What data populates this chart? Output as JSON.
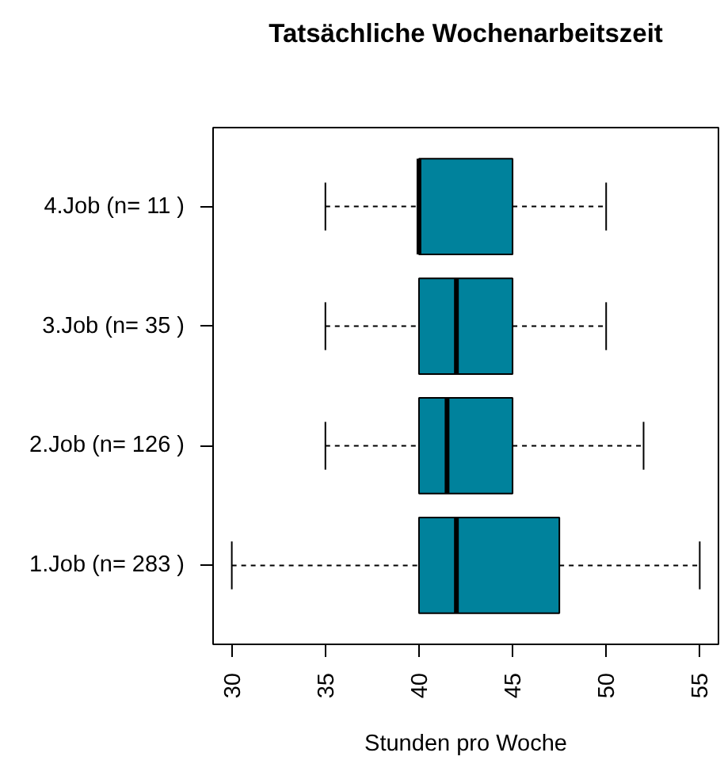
{
  "chart_data": {
    "type": "box",
    "orientation": "horizontal",
    "title": "Tatsächliche Wochenarbeitszeit",
    "xlabel": "Stunden pro Woche",
    "categories": [
      "4.Job (n= 11 )",
      "3.Job (n= 35 )",
      "2.Job (n= 126 )",
      "1.Job (n= 283 )"
    ],
    "series": [
      {
        "color": "#00829c",
        "boxes": [
          {
            "low": 35,
            "q1": 40,
            "median": 40,
            "q3": 45,
            "high": 50
          },
          {
            "low": 35,
            "q1": 40,
            "median": 42,
            "q3": 45,
            "high": 50
          },
          {
            "low": 35,
            "q1": 40,
            "median": 41.5,
            "q3": 45,
            "high": 52
          },
          {
            "low": 30,
            "q1": 40,
            "median": 42,
            "q3": 47.5,
            "high": 55
          }
        ]
      }
    ],
    "xlim": [
      29,
      56
    ],
    "xticks": [
      30,
      35,
      40,
      45,
      50,
      55
    ],
    "grid": false
  }
}
